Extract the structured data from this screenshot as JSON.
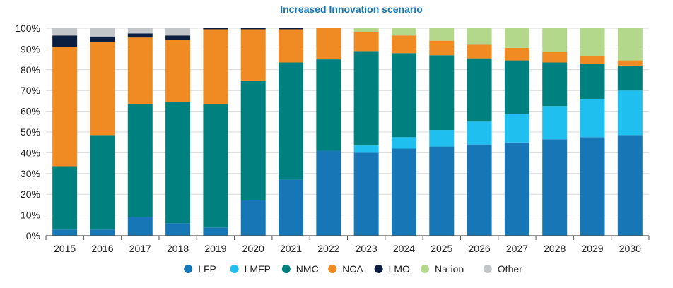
{
  "chart_data": {
    "type": "bar",
    "stacked": true,
    "title": "Increased Innovation scenario",
    "categories": [
      "2015",
      "2016",
      "2017",
      "2018",
      "2019",
      "2020",
      "2021",
      "2022",
      "2023",
      "2024",
      "2025",
      "2026",
      "2027",
      "2028",
      "2029",
      "2030"
    ],
    "ylim": [
      0,
      100
    ],
    "yticks": [
      "0%",
      "10%",
      "20%",
      "30%",
      "40%",
      "50%",
      "60%",
      "70%",
      "80%",
      "90%",
      "100%"
    ],
    "grid": true,
    "legend_position": "bottom",
    "series": [
      {
        "name": "LFP",
        "color": "#1676b6",
        "values": [
          3,
          3,
          9,
          6,
          4,
          17,
          27,
          41,
          40,
          42,
          43,
          44,
          45,
          46.5,
          47.5,
          48.5
        ]
      },
      {
        "name": "LMFP",
        "color": "#1fbfef",
        "values": [
          0,
          0,
          0,
          0,
          0,
          0,
          0,
          0,
          3.5,
          5.5,
          8,
          11,
          13.5,
          16,
          18.5,
          21.5
        ]
      },
      {
        "name": "NMC",
        "color": "#00807f",
        "values": [
          30.5,
          45.5,
          54.5,
          58.5,
          59.5,
          57.5,
          56.5,
          44,
          45.5,
          40.5,
          36,
          30.5,
          26,
          21,
          17,
          12
        ]
      },
      {
        "name": "NCA",
        "color": "#f08a22",
        "values": [
          57.5,
          45,
          32,
          30,
          36,
          25,
          16,
          15,
          9,
          8.5,
          7,
          6.5,
          6,
          5,
          3.5,
          2.5
        ]
      },
      {
        "name": "LMO",
        "color": "#0d1f40",
        "values": [
          5.5,
          2.5,
          2,
          2,
          0.5,
          0.5,
          0.5,
          0,
          0,
          0,
          0,
          0,
          0,
          0,
          0,
          0
        ]
      },
      {
        "name": "Na-ion",
        "color": "#b3d88c",
        "values": [
          0,
          0,
          0,
          0,
          0,
          0,
          0,
          0,
          2,
          3.5,
          6,
          8,
          9.5,
          11.5,
          13.5,
          15.5
        ]
      },
      {
        "name": "Other",
        "color": "#c3c6c9",
        "values": [
          3.5,
          4,
          2.5,
          3.5,
          0,
          0,
          0,
          0,
          0,
          0,
          0,
          0,
          0,
          0,
          0,
          0
        ]
      }
    ]
  },
  "colors": {
    "title": "#1676b6",
    "axis": "#555555",
    "grid": "#d9d9d9",
    "plot_bg": "#ffffff"
  }
}
